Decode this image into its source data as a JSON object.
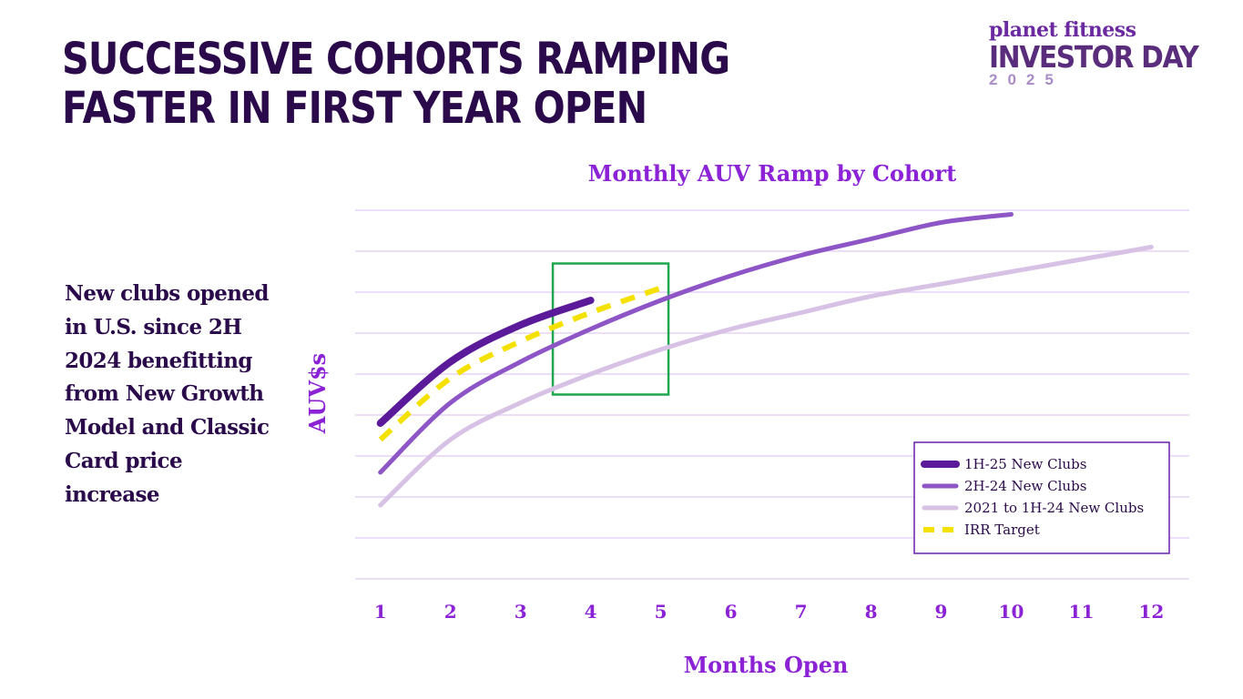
{
  "slide": {
    "title_lines": [
      "SUCCESSIVE COHORTS RAMPING",
      "FASTER IN FIRST YEAR OPEN"
    ],
    "brand": {
      "name": "planet fitness",
      "event": "INVESTOR DAY",
      "year": "2025"
    },
    "side_note": "New clubs opened in U.S. since 2H 2024 benefitting from New Growth Model and Classic Card price increase"
  },
  "chart_data": {
    "type": "line",
    "title": "Monthly AUV Ramp by Cohort",
    "xlabel": "Months Open",
    "ylabel": "AUV$s",
    "x": [
      1,
      2,
      3,
      4,
      5,
      6,
      7,
      8,
      9,
      10,
      11,
      12
    ],
    "xlim": [
      0.64,
      12.54
    ],
    "ylim": [
      0,
      9
    ],
    "y_tick_labels_shown": false,
    "grid": true,
    "legend_position": "bottom-right",
    "series": [
      {
        "name": "1H-25 New Clubs",
        "color": "#5b1a99",
        "style": "solid",
        "width": 8,
        "x": [
          1,
          2,
          3,
          4
        ],
        "values": [
          3.8,
          5.3,
          6.2,
          6.8
        ]
      },
      {
        "name": "2H-24 New Clubs",
        "color": "#8e55c6",
        "style": "solid",
        "width": 5,
        "x": [
          1,
          2,
          3,
          4,
          5,
          6,
          7,
          8,
          9,
          10
        ],
        "values": [
          2.6,
          4.3,
          5.3,
          6.1,
          6.8,
          7.4,
          7.9,
          8.3,
          8.7,
          8.9
        ]
      },
      {
        "name": "2021 to 1H-24 New Clubs",
        "color": "#d7c2e6",
        "style": "solid",
        "width": 5,
        "x": [
          1,
          2,
          3,
          4,
          5,
          6,
          7,
          8,
          9,
          10,
          11,
          12
        ],
        "values": [
          1.8,
          3.4,
          4.3,
          5.0,
          5.6,
          6.1,
          6.5,
          6.9,
          7.2,
          7.5,
          7.8,
          8.1
        ]
      },
      {
        "name": "IRR Target",
        "color": "#f5e100",
        "style": "dashed",
        "width": 6,
        "x": [
          1,
          2,
          3,
          4,
          5
        ],
        "values": [
          3.4,
          4.9,
          5.8,
          6.5,
          7.1
        ]
      }
    ],
    "highlight_box": {
      "x_range": [
        3.46,
        5.11
      ],
      "y_range": [
        4.5,
        7.7
      ],
      "color": "#1fa64e"
    }
  }
}
